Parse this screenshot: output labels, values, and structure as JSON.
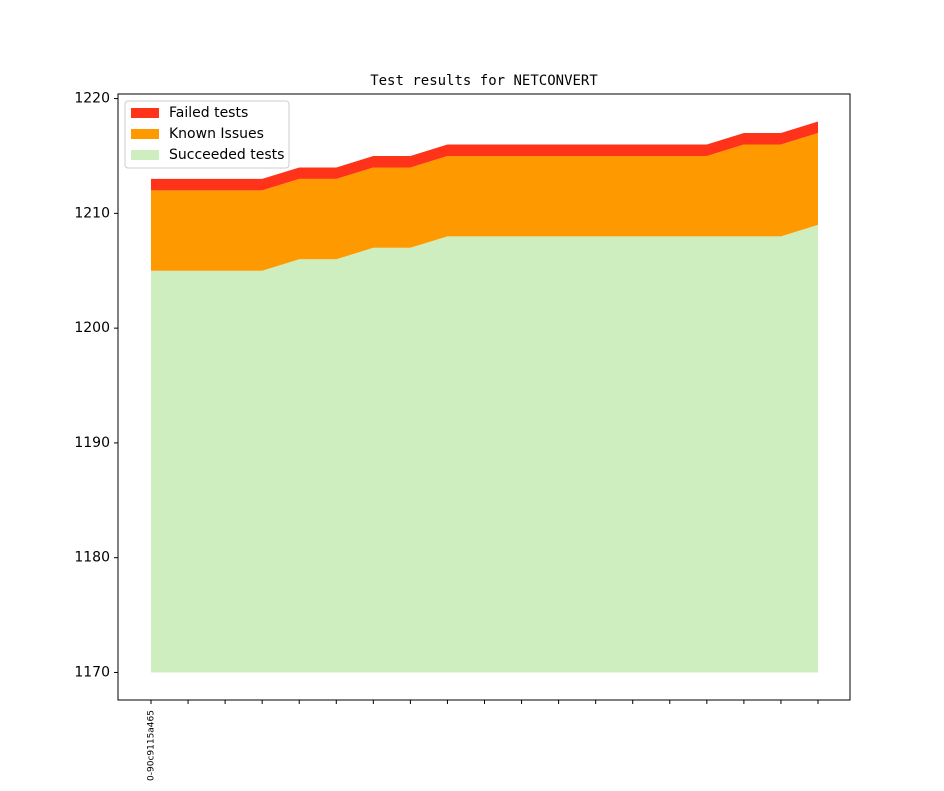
{
  "chart_data": {
    "type": "stacked-area",
    "title": "Test results for NETCONVERT",
    "categories": [
      "0-90c9115a465",
      null,
      null,
      null,
      null,
      null,
      null,
      null,
      null,
      null,
      null,
      null,
      null,
      null,
      null,
      null,
      null,
      null,
      null
    ],
    "series": [
      {
        "name": "Failed tests",
        "color": "#ff3319",
        "values": [
          1,
          1,
          1,
          1,
          1,
          1,
          1,
          1,
          1,
          1,
          1,
          1,
          1,
          1,
          1,
          1,
          1,
          1,
          1
        ]
      },
      {
        "name": "Known Issues",
        "color": "#ff9900",
        "values": [
          7,
          7,
          7,
          7,
          7,
          7,
          7,
          7,
          7,
          7,
          7,
          7,
          7,
          7,
          7,
          7,
          8,
          8,
          8
        ]
      },
      {
        "name": "Succeeded tests",
        "color": "#ceeebf",
        "values": [
          1205,
          1205,
          1205,
          1205,
          1206,
          1206,
          1207,
          1207,
          1208,
          1208,
          1208,
          1208,
          1208,
          1208,
          1208,
          1208,
          1208,
          1208,
          1209
        ]
      }
    ],
    "baseline": 1170,
    "ylim": [
      1167.6,
      1220.4
    ],
    "yticks": [
      1170,
      1180,
      1190,
      1200,
      1210,
      1220
    ],
    "legend": "upper-left"
  }
}
